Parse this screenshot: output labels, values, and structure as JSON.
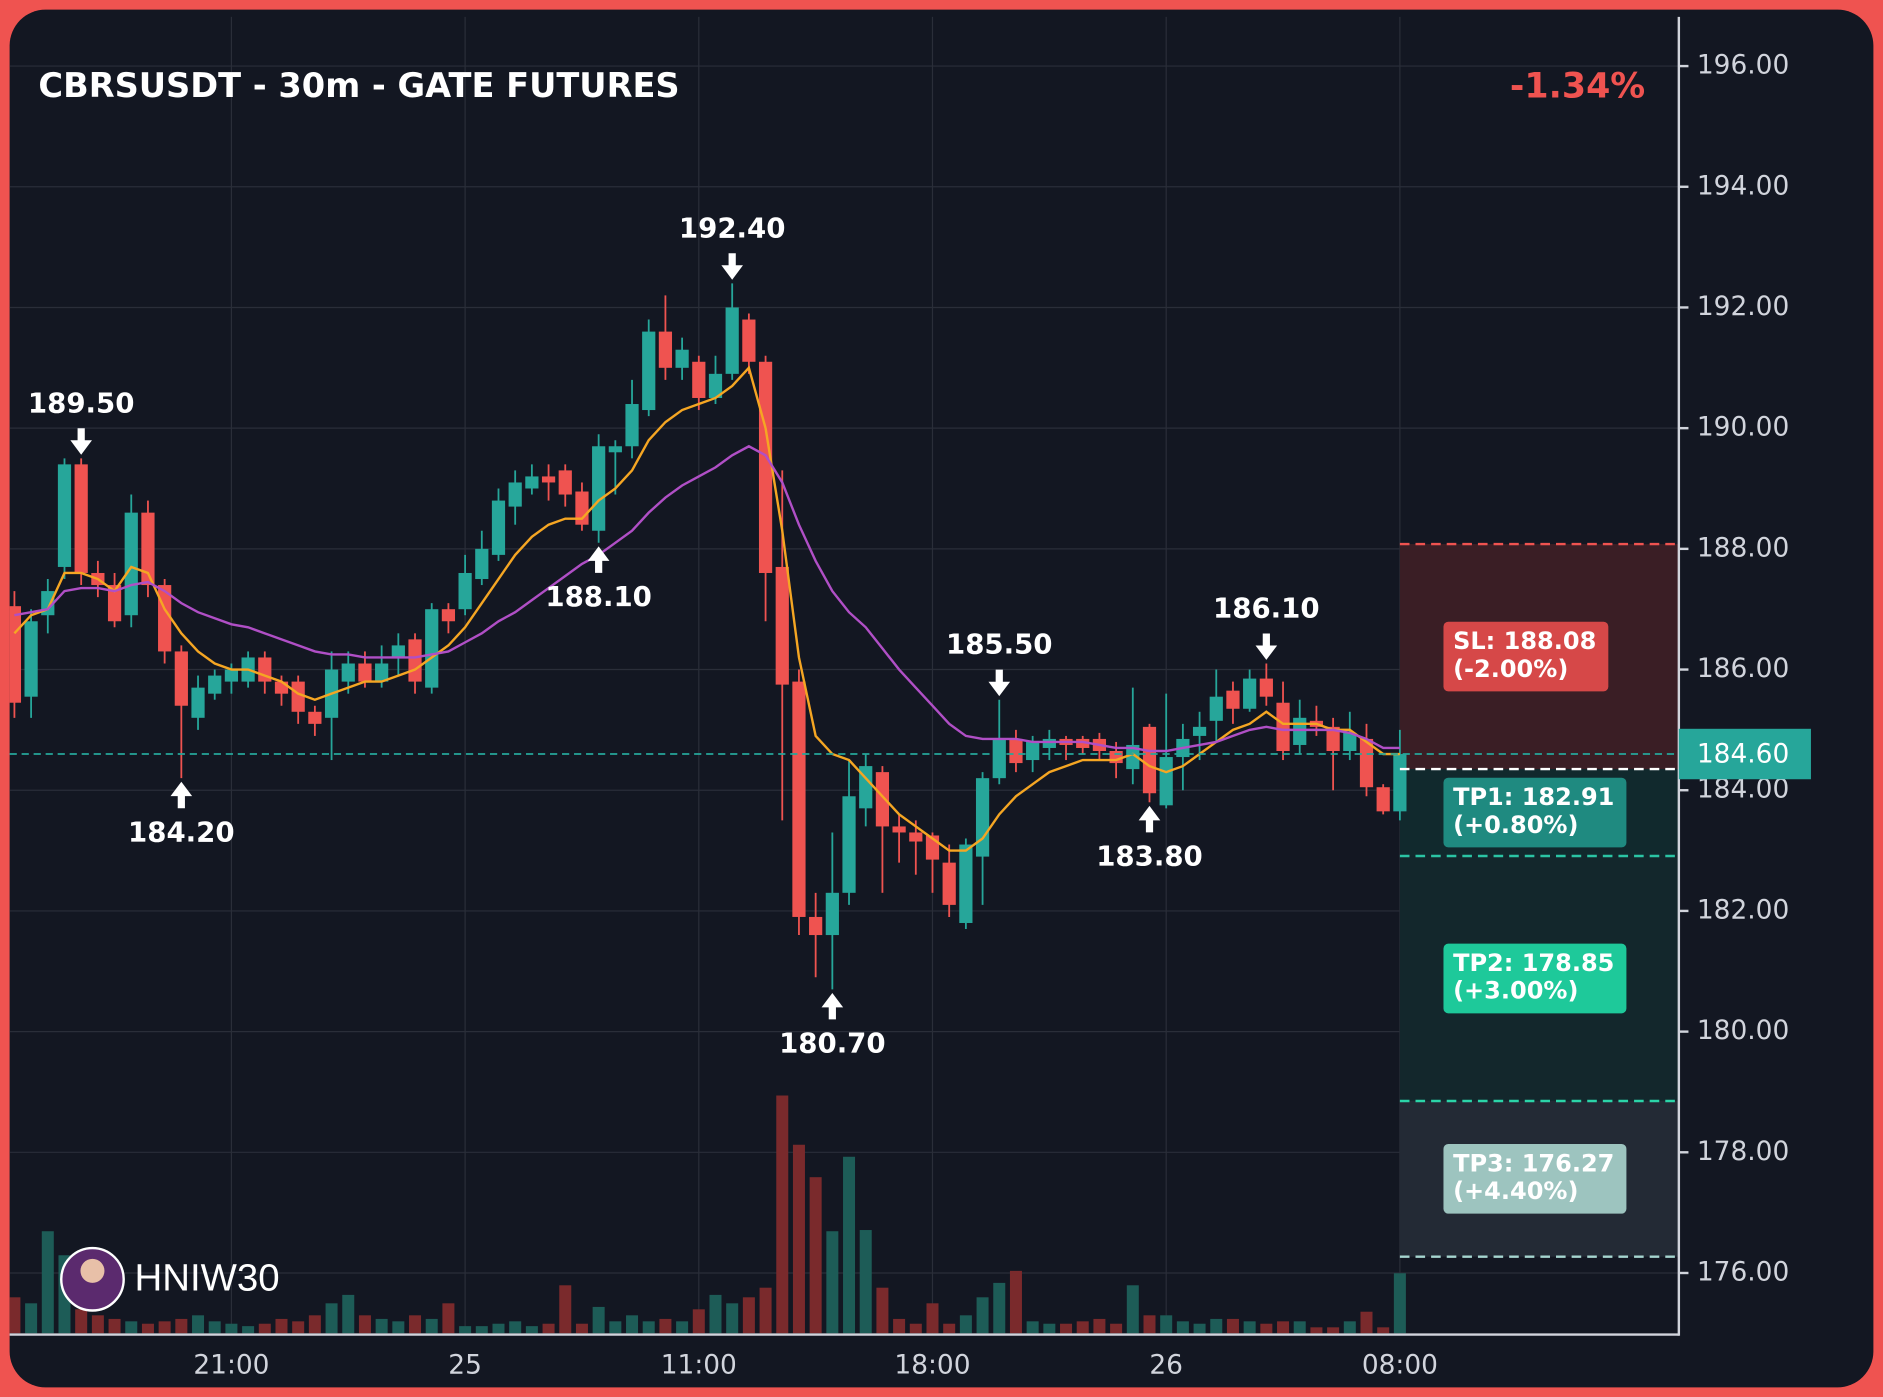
{
  "chart_data": {
    "type": "candlestick",
    "title": "CBRSUSDT - 30m - GATE FUTURES",
    "change": "-1.34%",
    "change_color": "#ef5350",
    "watermark": "HNIW30",
    "categories": [
      null,
      null,
      null,
      null,
      null,
      null,
      null,
      null,
      null,
      null,
      null,
      null,
      null,
      "21:00",
      null,
      null,
      null,
      null,
      null,
      null,
      null,
      null,
      null,
      null,
      null,
      null,
      null,
      "25",
      null,
      null,
      null,
      null,
      null,
      null,
      null,
      null,
      null,
      null,
      null,
      null,
      null,
      "11:00",
      null,
      null,
      null,
      null,
      null,
      null,
      null,
      null,
      null,
      null,
      null,
      null,
      null,
      "18:00",
      null,
      null,
      null,
      null,
      null,
      null,
      null,
      null,
      null,
      null,
      null,
      null,
      null,
      "26",
      null,
      null,
      null,
      null,
      null,
      null,
      null,
      null,
      null,
      null,
      null,
      null,
      null,
      "08:00"
    ],
    "open": [
      187.05,
      185.55,
      186.9,
      187.7,
      189.4,
      187.6,
      187.4,
      186.9,
      188.6,
      187.4,
      186.3,
      185.2,
      185.6,
      185.8,
      185.8,
      186.2,
      185.8,
      185.8,
      185.3,
      185.2,
      185.8,
      186.1,
      185.8,
      186.2,
      186.5,
      185.7,
      187.0,
      187.0,
      187.5,
      187.9,
      188.7,
      189.0,
      189.2,
      189.3,
      188.95,
      188.3,
      189.6,
      189.7,
      190.3,
      191.6,
      191.0,
      191.1,
      190.5,
      190.9,
      191.8,
      191.1,
      187.7,
      185.8,
      181.9,
      181.6,
      182.3,
      183.7,
      184.3,
      183.4,
      183.3,
      183.25,
      182.8,
      181.8,
      182.9,
      184.2,
      184.85,
      184.5,
      184.7,
      184.85,
      184.85,
      184.85,
      184.65,
      184.35,
      185.05,
      183.75,
      184.55,
      184.9,
      185.15,
      185.65,
      185.35,
      185.85,
      185.45,
      184.75,
      185.15,
      185.05,
      184.65,
      184.85,
      184.05,
      183.65
    ],
    "high": [
      187.3,
      187.0,
      187.5,
      189.5,
      189.5,
      187.8,
      187.6,
      188.9,
      188.8,
      187.5,
      186.4,
      185.9,
      186.0,
      186.1,
      186.3,
      186.3,
      185.9,
      185.9,
      185.4,
      186.3,
      186.3,
      186.3,
      186.4,
      186.6,
      186.6,
      187.1,
      187.1,
      187.9,
      188.3,
      189.0,
      189.3,
      189.4,
      189.4,
      189.4,
      189.1,
      189.9,
      189.8,
      190.8,
      191.8,
      192.2,
      191.5,
      191.2,
      191.2,
      192.4,
      191.9,
      191.2,
      189.3,
      186.0,
      182.3,
      183.3,
      184.5,
      184.6,
      184.4,
      183.6,
      183.5,
      183.3,
      183.1,
      183.2,
      184.3,
      185.5,
      185.0,
      184.9,
      185.0,
      184.9,
      184.9,
      184.95,
      184.8,
      185.7,
      185.1,
      185.6,
      185.1,
      185.3,
      186.0,
      185.8,
      186.0,
      186.1,
      185.8,
      185.5,
      185.4,
      185.2,
      185.3,
      185.1,
      184.1,
      185.0
    ],
    "low": [
      185.2,
      185.2,
      186.6,
      187.5,
      187.4,
      187.2,
      186.7,
      186.7,
      187.2,
      186.1,
      184.2,
      185.0,
      185.5,
      185.6,
      185.7,
      185.6,
      185.4,
      185.1,
      184.9,
      184.5,
      185.6,
      185.7,
      185.7,
      185.9,
      185.6,
      185.6,
      186.6,
      186.9,
      187.4,
      187.8,
      188.4,
      188.9,
      188.8,
      188.7,
      188.3,
      188.1,
      188.9,
      189.5,
      190.2,
      190.8,
      190.8,
      190.3,
      190.4,
      190.8,
      190.9,
      186.8,
      183.5,
      181.6,
      180.9,
      180.7,
      182.1,
      183.4,
      182.3,
      182.8,
      182.6,
      182.3,
      181.9,
      181.7,
      182.1,
      184.1,
      184.3,
      184.3,
      184.5,
      184.5,
      184.6,
      184.5,
      184.2,
      184.1,
      183.8,
      183.7,
      184.0,
      184.5,
      184.8,
      185.1,
      185.3,
      185.4,
      184.5,
      184.6,
      184.9,
      184.0,
      184.5,
      183.9,
      183.6,
      183.5
    ],
    "close": [
      185.45,
      186.8,
      187.3,
      189.4,
      187.6,
      187.4,
      186.8,
      188.6,
      187.4,
      186.3,
      185.4,
      185.7,
      185.9,
      186.0,
      186.2,
      185.8,
      185.6,
      185.3,
      185.1,
      186.0,
      186.1,
      185.8,
      186.1,
      186.4,
      185.8,
      187.0,
      186.8,
      187.6,
      188.0,
      188.8,
      189.1,
      189.2,
      189.1,
      188.9,
      188.4,
      189.7,
      189.7,
      190.4,
      191.6,
      191.0,
      191.3,
      190.5,
      190.9,
      192.0,
      191.1,
      187.6,
      185.75,
      181.9,
      181.6,
      182.3,
      183.9,
      184.4,
      183.4,
      183.3,
      183.15,
      182.85,
      182.1,
      183.1,
      184.2,
      184.85,
      184.45,
      184.8,
      184.85,
      184.75,
      184.7,
      184.65,
      184.45,
      184.75,
      183.95,
      184.55,
      184.85,
      185.05,
      185.55,
      185.35,
      185.85,
      185.55,
      184.65,
      185.2,
      185.05,
      184.65,
      184.95,
      184.05,
      183.65,
      184.6
    ],
    "volume": [
      30,
      25,
      85,
      65,
      20,
      15,
      12,
      10,
      8,
      10,
      12,
      15,
      10,
      8,
      6,
      8,
      12,
      10,
      15,
      25,
      32,
      15,
      12,
      10,
      15,
      12,
      25,
      6,
      6,
      8,
      10,
      6,
      8,
      40,
      8,
      22,
      10,
      15,
      10,
      12,
      10,
      20,
      32,
      25,
      30,
      38,
      198,
      157,
      130,
      85,
      147,
      86,
      38,
      12,
      8,
      25,
      8,
      15,
      30,
      42,
      52,
      10,
      8,
      8,
      10,
      12,
      8,
      40,
      15,
      15,
      10,
      8,
      12,
      12,
      10,
      8,
      10,
      10,
      5,
      5,
      10,
      18,
      5,
      50
    ],
    "up_color": "#26a69a",
    "down_color": "#ef5350",
    "volume_up_color": "#1d5c57",
    "volume_down_color": "#7a2a2c",
    "ma_lines": [
      {
        "color": "#f5a623",
        "values": [
          186.6,
          186.9,
          187.0,
          187.6,
          187.6,
          187.5,
          187.3,
          187.7,
          187.6,
          187.0,
          186.6,
          186.3,
          186.1,
          186.0,
          186.0,
          185.9,
          185.8,
          185.6,
          185.5,
          185.6,
          185.7,
          185.8,
          185.8,
          185.9,
          186.0,
          186.2,
          186.4,
          186.7,
          187.1,
          187.5,
          187.9,
          188.2,
          188.4,
          188.5,
          188.5,
          188.8,
          189.0,
          189.3,
          189.8,
          190.1,
          190.3,
          190.4,
          190.5,
          190.7,
          191.0,
          190.0,
          188.3,
          186.2,
          184.9,
          184.6,
          184.5,
          184.2,
          183.9,
          183.6,
          183.4,
          183.2,
          183.0,
          183.0,
          183.2,
          183.6,
          183.9,
          184.1,
          184.3,
          184.4,
          184.5,
          184.5,
          184.5,
          184.6,
          184.4,
          184.3,
          184.4,
          184.6,
          184.8,
          185.0,
          185.1,
          185.3,
          185.1,
          185.1,
          185.1,
          185.0,
          185.0,
          184.8,
          184.6,
          184.6
        ]
      },
      {
        "color": "#b04fc6",
        "values": [
          186.9,
          186.95,
          187.0,
          187.3,
          187.35,
          187.35,
          187.3,
          187.4,
          187.45,
          187.3,
          187.1,
          186.95,
          186.85,
          186.75,
          186.7,
          186.6,
          186.5,
          186.4,
          186.3,
          186.25,
          186.25,
          186.2,
          186.2,
          186.2,
          186.2,
          186.25,
          186.3,
          186.45,
          186.6,
          186.8,
          186.95,
          187.15,
          187.35,
          187.55,
          187.75,
          187.9,
          188.1,
          188.3,
          188.6,
          188.85,
          189.05,
          189.2,
          189.35,
          189.55,
          189.7,
          189.55,
          189.1,
          188.4,
          187.8,
          187.3,
          186.95,
          186.7,
          186.35,
          186.0,
          185.7,
          185.4,
          185.1,
          184.9,
          184.85,
          184.85,
          184.85,
          184.8,
          184.8,
          184.8,
          184.8,
          184.75,
          184.7,
          184.7,
          184.65,
          184.65,
          184.7,
          184.75,
          184.8,
          184.9,
          185.0,
          185.05,
          185.0,
          185.0,
          185.0,
          185.0,
          184.95,
          184.85,
          184.7,
          184.7
        ]
      }
    ],
    "annotations": [
      {
        "index": 4,
        "side": "above",
        "value": 189.5,
        "label": "189.50"
      },
      {
        "index": 10,
        "side": "below",
        "value": 184.2,
        "label": "184.20"
      },
      {
        "index": 43,
        "side": "above",
        "value": 192.4,
        "label": "192.40"
      },
      {
        "index": 35,
        "side": "below",
        "value": 188.1,
        "label": "188.10"
      },
      {
        "index": 49,
        "side": "below",
        "value": 180.7,
        "label": "180.70"
      },
      {
        "index": 59,
        "side": "above",
        "value": 185.5,
        "label": "185.50"
      },
      {
        "index": 68,
        "side": "below",
        "value": 183.8,
        "label": "183.80"
      },
      {
        "index": 75,
        "side": "above",
        "value": 186.1,
        "label": "186.10"
      }
    ],
    "entry": {
      "value": 184.35,
      "color": "#ffffff"
    },
    "levels": [
      {
        "kind": "sl",
        "value": 188.08,
        "label": "SL: 188.08",
        "sublabel": "(-2.00%)",
        "line_color": "#ef5350",
        "box_color": "#d64848",
        "zone_color": "#3a1e25"
      },
      {
        "kind": "tp",
        "value": 182.91,
        "label": "TP1: 182.91",
        "sublabel": "(+0.80%)",
        "line_color": "#2bc4a4",
        "box_color": "#1f8a80",
        "zone_color": "#11292d"
      },
      {
        "kind": "tp",
        "value": 178.85,
        "label": "TP2: 178.85",
        "sublabel": "(+3.00%)",
        "line_color": "#2bd4a8",
        "box_color": "#1ec99a",
        "zone_color": "#13272c"
      },
      {
        "kind": "tp",
        "value": 176.27,
        "label": "TP3: 176.27",
        "sublabel": "(+4.40%)",
        "line_color": "#a6d6d0",
        "box_color": "#9dc4bf",
        "zone_color": "#232a35"
      }
    ],
    "last_price": {
      "value": 184.6,
      "label": "184.60",
      "color": "#26a69a"
    },
    "ylim": [
      175.0,
      196.9
    ],
    "yticks": [
      {
        "value": 176,
        "label": "176.00"
      },
      {
        "value": 178,
        "label": "178.00"
      },
      {
        "value": 180,
        "label": "180.00"
      },
      {
        "value": 182,
        "label": "182.00"
      },
      {
        "value": 184,
        "label": "184.00"
      },
      {
        "value": 186,
        "label": "186.00"
      },
      {
        "value": 188,
        "label": "188.00"
      },
      {
        "value": 190,
        "label": "190.00"
      },
      {
        "value": 192,
        "label": "192.00"
      },
      {
        "value": 194,
        "label": "194.00"
      },
      {
        "value": 196,
        "label": "196.00"
      }
    ],
    "grid": true
  }
}
